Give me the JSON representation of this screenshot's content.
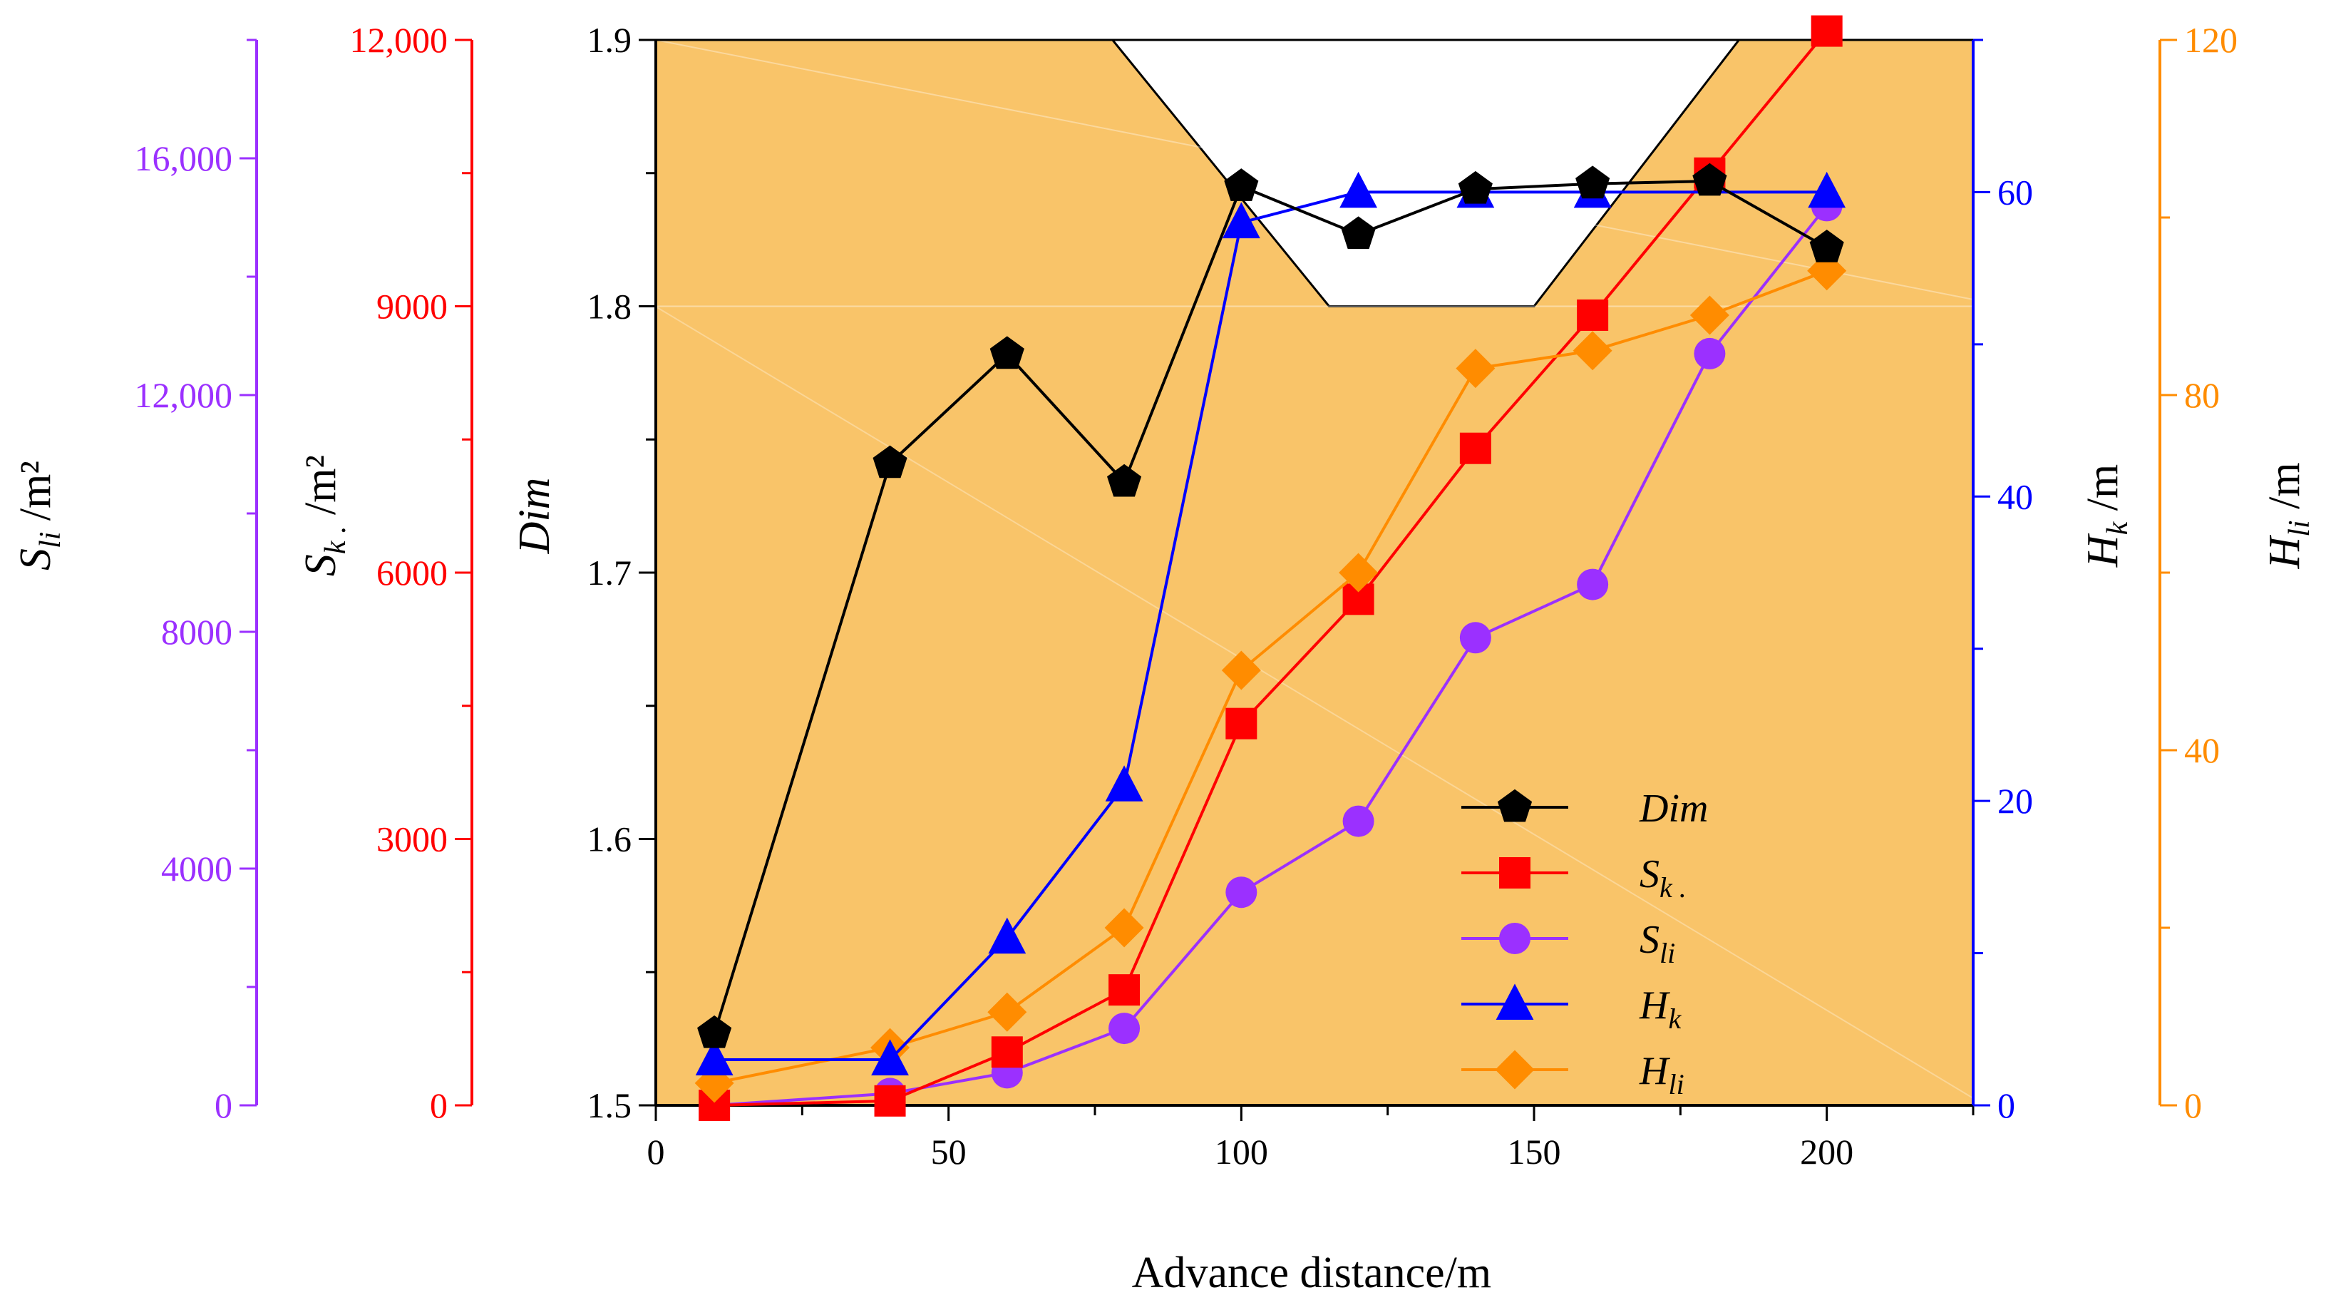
{
  "chart_data": {
    "type": "line",
    "x_axis": {
      "title": "Advance distance/m",
      "range": [
        0,
        225
      ],
      "ticks": [
        "0",
        "50",
        "100",
        "150",
        "200"
      ],
      "tick_values": [
        0,
        50,
        100,
        150,
        200
      ],
      "minor_step": 25
    },
    "y_axes": [
      {
        "id": "dim",
        "title": "Dim",
        "side": "left-inner",
        "color": "#000000",
        "range": [
          1.5,
          1.9
        ],
        "ticks": [
          "1.5",
          "1.6",
          "1.7",
          "1.8",
          "1.9"
        ],
        "tick_values": [
          1.5,
          1.6,
          1.7,
          1.8,
          1.9
        ]
      },
      {
        "id": "sk",
        "title": "Sk. /m²",
        "title_main": "S",
        "title_sub": "k .",
        "title_unit": " /m²",
        "side": "left-middle",
        "color": "#ff0000",
        "range": [
          0,
          12000
        ],
        "ticks": [
          "0",
          "3000",
          "6000",
          "9000",
          "12,000"
        ],
        "tick_values": [
          0,
          3000,
          6000,
          9000,
          12000
        ]
      },
      {
        "id": "sli",
        "title": "Sli /m²",
        "title_main": "S",
        "title_sub": "li",
        "title_unit": " /m²",
        "side": "left-outer",
        "color": "#9b30ff",
        "range": [
          0,
          18000
        ],
        "ticks": [
          "0",
          "4000",
          "8000",
          "12,000",
          "16,000"
        ],
        "tick_values": [
          0,
          4000,
          8000,
          12000,
          16000
        ]
      },
      {
        "id": "hk",
        "title": "Hk /m",
        "title_main": "H",
        "title_sub": "k",
        "title_unit": " /m",
        "side": "right-inner",
        "color": "#0000ff",
        "range": [
          0,
          70
        ],
        "ticks": [
          "0",
          "20",
          "40",
          "60"
        ],
        "tick_values": [
          0,
          20,
          40,
          60
        ]
      },
      {
        "id": "hli",
        "title": "Hli /m",
        "title_main": "H",
        "title_sub": "li",
        "title_unit": " /m",
        "side": "right-outer",
        "color": "#ff8c00",
        "range": [
          0,
          120
        ],
        "ticks": [
          "0",
          "40",
          "80",
          "120"
        ],
        "tick_values": [
          0,
          40,
          80,
          120
        ]
      }
    ],
    "series": [
      {
        "name": "Dim",
        "label_main": "Dim",
        "label_sub": "",
        "axis": "dim",
        "color": "#000000",
        "marker": "pentagon",
        "x": [
          10,
          40,
          60,
          80,
          100,
          120,
          140,
          160,
          180,
          200
        ],
        "y": [
          1.527,
          1.741,
          1.782,
          1.734,
          1.845,
          1.827,
          1.844,
          1.846,
          1.847,
          1.822
        ]
      },
      {
        "name": "Sk.",
        "label_main": "S",
        "label_sub": "k .",
        "axis": "sk",
        "color": "#ff0000",
        "marker": "square",
        "x": [
          10,
          40,
          60,
          80,
          100,
          120,
          140,
          160,
          180,
          200
        ],
        "y": [
          0,
          50,
          600,
          1300,
          4300,
          5700,
          7400,
          8900,
          10500,
          12100
        ]
      },
      {
        "name": "Sli",
        "label_main": "S",
        "label_sub": "li",
        "axis": "sli",
        "color": "#9b30ff",
        "marker": "circle",
        "x": [
          10,
          40,
          60,
          80,
          100,
          120,
          140,
          160,
          180,
          200
        ],
        "y": [
          0,
          200,
          550,
          1300,
          3600,
          4800,
          7900,
          8800,
          12700,
          15200
        ]
      },
      {
        "name": "Hk",
        "label_main": "H",
        "label_sub": "k",
        "axis": "hk",
        "color": "#0000ff",
        "marker": "triangle",
        "x": [
          10,
          40,
          100,
          120,
          140,
          160,
          200,
          80,
          60
        ],
        "y": [
          3,
          3,
          58,
          60,
          60,
          60,
          60,
          21,
          11
        ]
      },
      {
        "name": "Hli",
        "label_main": "H",
        "label_sub": "li",
        "axis": "hli",
        "color": "#ff8c00",
        "marker": "diamond",
        "x": [
          10,
          40,
          60,
          80,
          100,
          120,
          140,
          160,
          180,
          200
        ],
        "y": [
          2.5,
          6.5,
          10.5,
          20,
          49,
          60,
          83,
          85,
          89,
          94
        ]
      }
    ],
    "legend": {
      "placement": "bottom-right-center"
    },
    "background": {
      "color": "#f9c469",
      "cutout_color": "#ffffff"
    }
  }
}
